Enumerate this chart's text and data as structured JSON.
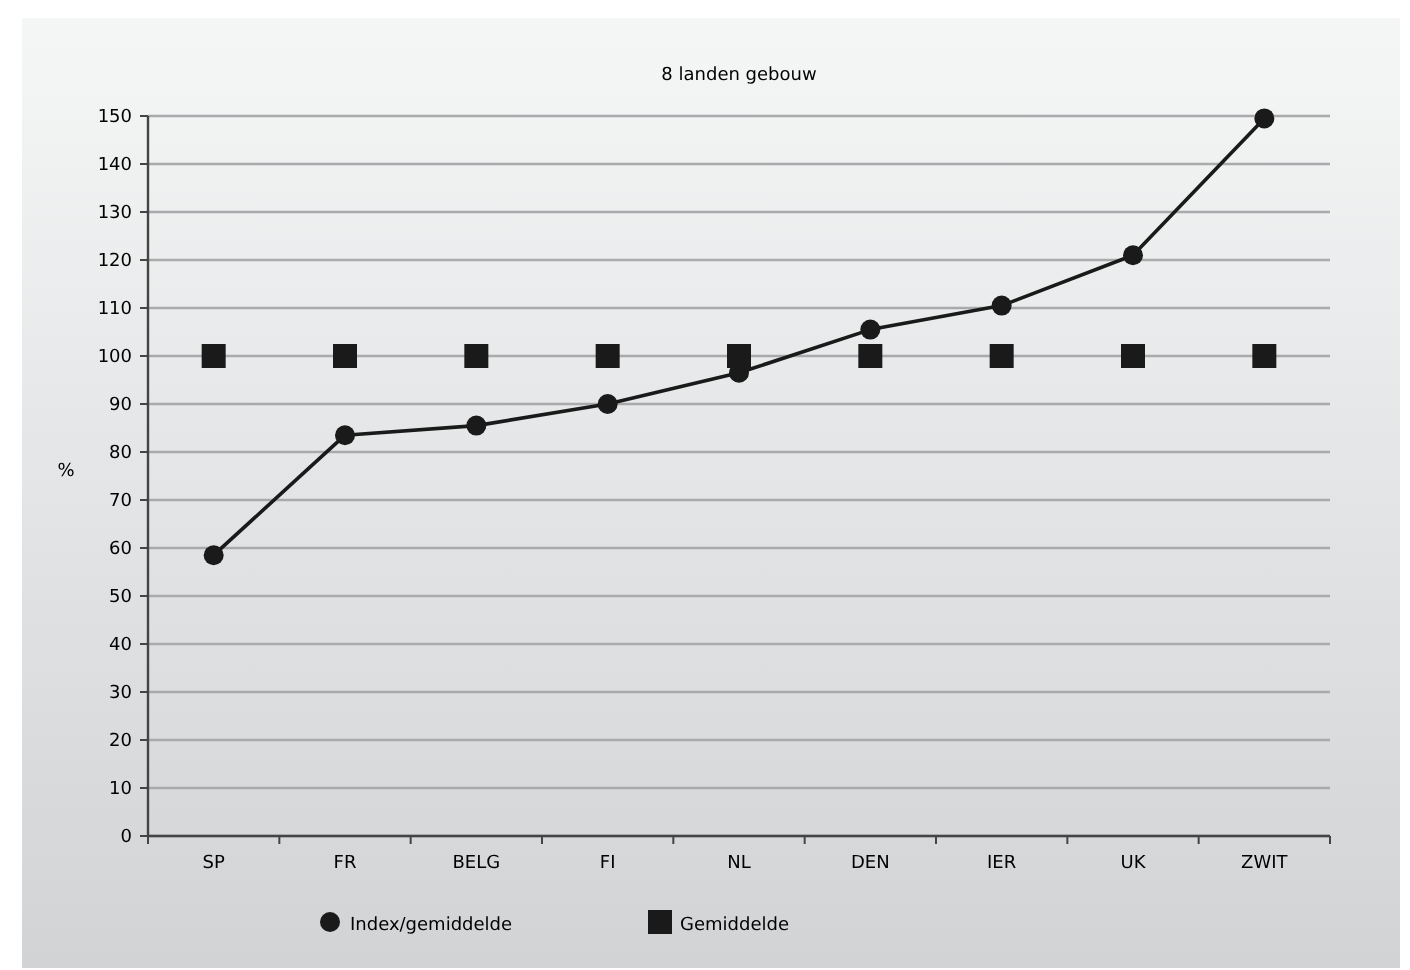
{
  "chart_data": {
    "type": "line",
    "title": "8 landen gebouw",
    "ylabel": "%",
    "categories": [
      "SP",
      "FR",
      "BELG",
      "FI",
      "NL",
      "DEN",
      "IER",
      "UK",
      "ZWIT"
    ],
    "series": [
      {
        "name": "Index/gemiddelde",
        "color": "#1a1a1a",
        "marker": "circle",
        "values": [
          58.5,
          83.5,
          85.5,
          90,
          96.5,
          105.5,
          110.5,
          121,
          149.5
        ]
      },
      {
        "name": "Gemiddelde",
        "type": "scatter",
        "color": "#1a1a1a",
        "marker": "square",
        "values": [
          100,
          100,
          100,
          100,
          100,
          100,
          100,
          100,
          100
        ]
      }
    ],
    "ylim": [
      0,
      150
    ],
    "yticks": [
      0,
      10,
      20,
      30,
      40,
      50,
      60,
      70,
      80,
      90,
      100,
      110,
      120,
      130,
      140,
      150
    ],
    "grid": "y",
    "legend": "bottom"
  }
}
